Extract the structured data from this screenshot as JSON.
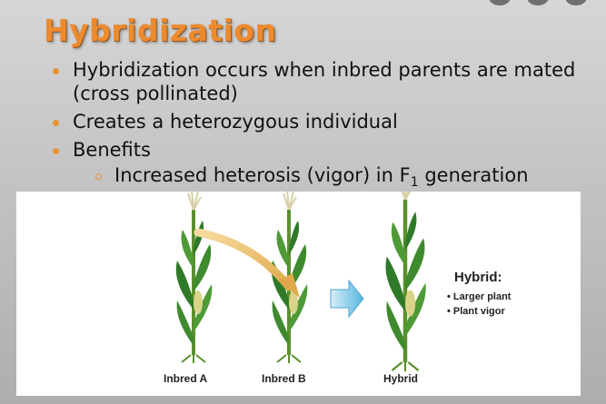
{
  "slide": {
    "title": "Hybridization",
    "bullets": [
      "Hybridization occurs when inbred parents are mated (cross pollinated)",
      "Creates a heterozygous individual",
      "Benefits"
    ],
    "sub_bullet": {
      "before": "Increased heterosis (vigor) in F",
      "subscript": "1",
      "after": " generation"
    }
  },
  "figure": {
    "labels": {
      "inbred_a": "Inbred A",
      "inbred_b": "Inbred B",
      "hybrid": "Hybrid"
    },
    "hybrid_box": {
      "title": "Hybrid:",
      "items": [
        "• Larger plant",
        "• Plant vigor"
      ]
    }
  },
  "colors": {
    "title": "#ee8a2e",
    "bullet": "#e99233",
    "leaf": "#3f8a2e",
    "arrow": "#e0a84a",
    "big_arrow": "#56b6de"
  }
}
